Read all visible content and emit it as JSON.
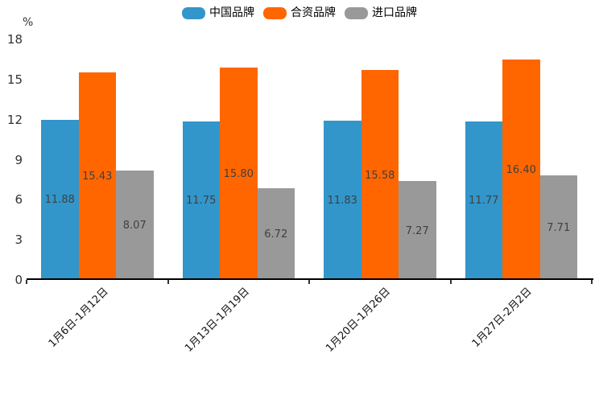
{
  "chart_data": {
    "type": "bar",
    "title": "",
    "unit_label": "%",
    "xlabel": "",
    "ylabel": "%",
    "categories": [
      "1月6日-1月12日",
      "1月13日-1月19日",
      "1月20日-1月26日",
      "1月27日-2月2日"
    ],
    "series": [
      {
        "name": "中国品牌",
        "color": "#3296cb",
        "values": [
          11.88,
          11.75,
          11.83,
          11.77
        ]
      },
      {
        "name": "合资品牌",
        "color": "#ff6600",
        "values": [
          15.43,
          15.8,
          15.58,
          16.4
        ]
      },
      {
        "name": "进口品牌",
        "color": "#999999",
        "values": [
          8.07,
          6.72,
          7.27,
          7.71
        ]
      }
    ],
    "ylim": [
      0,
      18
    ],
    "yticks": [
      0,
      3,
      6,
      9,
      12,
      15,
      18
    ],
    "legend_position": "top",
    "grid": false,
    "value_labels": true,
    "value_decimals": 2,
    "x_label_rotation": 45
  }
}
